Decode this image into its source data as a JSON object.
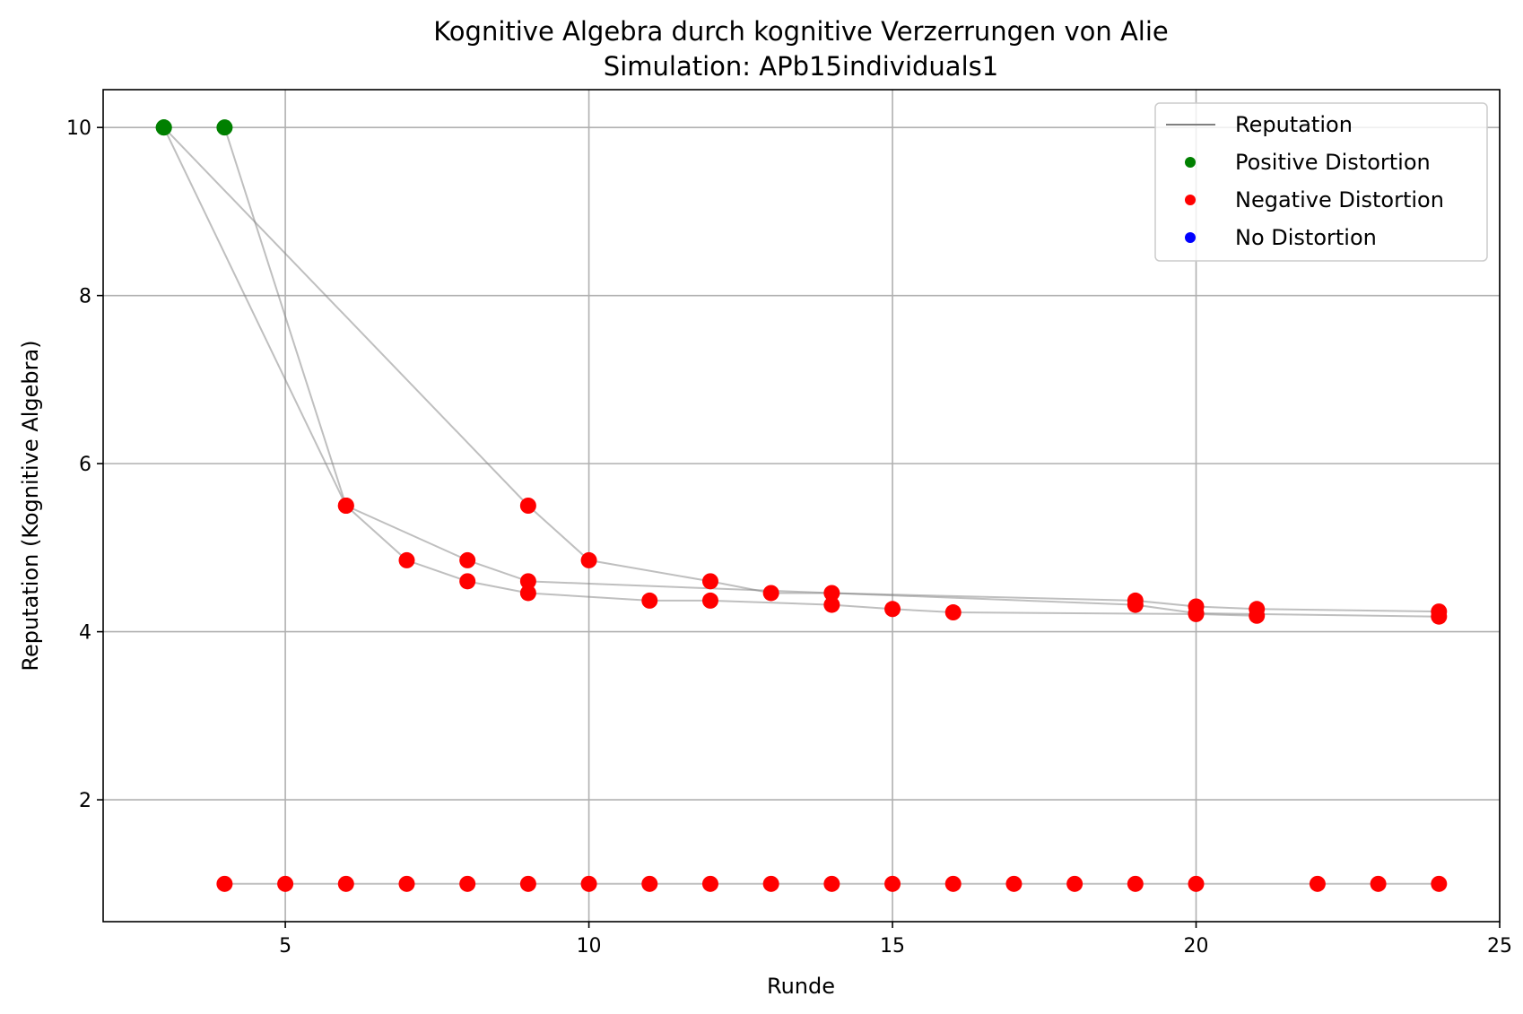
{
  "chart_data": {
    "type": "scatter",
    "title": "Kognitive Algebra durch kognitive Verzerrungen von Alie",
    "subtitle": "Simulation: APb15individuals1",
    "xlabel": "Runde",
    "ylabel": "Reputation (Kognitive Algebra)",
    "xlim": [
      2,
      25
    ],
    "ylim": [
      0.55,
      10.45
    ],
    "xticks": [
      5,
      10,
      15,
      20,
      25
    ],
    "yticks": [
      2,
      4,
      6,
      8,
      10
    ],
    "grid": true,
    "legend_position": "top-right",
    "legend": [
      {
        "label": "Reputation",
        "kind": "line",
        "color": "#808080"
      },
      {
        "label": "Positive Distortion",
        "kind": "marker",
        "color": "#008000"
      },
      {
        "label": "Negative Distortion",
        "kind": "marker",
        "color": "#ff0000"
      },
      {
        "label": "No Distortion",
        "kind": "marker",
        "color": "#0000ff"
      }
    ],
    "colors": {
      "positive": "#008000",
      "negative": "#ff0000",
      "none": "#0000ff",
      "line": "#808080"
    },
    "series": [
      {
        "points": [
          {
            "x": 3,
            "y": 10,
            "d": "positive"
          },
          {
            "x": 6,
            "y": 5.5,
            "d": "negative"
          },
          {
            "x": 8,
            "y": 4.85,
            "d": "negative"
          },
          {
            "x": 9,
            "y": 4.6,
            "d": "negative"
          },
          {
            "x": 19,
            "y": 4.32,
            "d": "negative"
          },
          {
            "x": 20,
            "y": 4.22,
            "d": "negative"
          },
          {
            "x": 24,
            "y": 4.18,
            "d": "negative"
          }
        ]
      },
      {
        "points": [
          {
            "x": 4,
            "y": 10,
            "d": "positive"
          },
          {
            "x": 6,
            "y": 5.5,
            "d": "negative"
          },
          {
            "x": 7,
            "y": 4.85,
            "d": "negative"
          },
          {
            "x": 8,
            "y": 4.6,
            "d": "negative"
          },
          {
            "x": 9,
            "y": 4.46,
            "d": "negative"
          },
          {
            "x": 11,
            "y": 4.37,
            "d": "negative"
          },
          {
            "x": 12,
            "y": 4.37,
            "d": "negative"
          },
          {
            "x": 14,
            "y": 4.32,
            "d": "negative"
          },
          {
            "x": 15,
            "y": 4.27,
            "d": "negative"
          },
          {
            "x": 16,
            "y": 4.23,
            "d": "negative"
          },
          {
            "x": 20,
            "y": 4.21,
            "d": "negative"
          },
          {
            "x": 21,
            "y": 4.19,
            "d": "negative"
          }
        ]
      },
      {
        "points": [
          {
            "x": 3,
            "y": 10,
            "d": "positive"
          },
          {
            "x": 9,
            "y": 5.5,
            "d": "negative"
          },
          {
            "x": 10,
            "y": 4.85,
            "d": "negative"
          },
          {
            "x": 12,
            "y": 4.6,
            "d": "negative"
          },
          {
            "x": 13,
            "y": 4.46,
            "d": "negative"
          },
          {
            "x": 14,
            "y": 4.46,
            "d": "negative"
          },
          {
            "x": 19,
            "y": 4.37,
            "d": "negative"
          },
          {
            "x": 20,
            "y": 4.3,
            "d": "negative"
          },
          {
            "x": 21,
            "y": 4.27,
            "d": "negative"
          },
          {
            "x": 24,
            "y": 4.24,
            "d": "negative"
          }
        ]
      },
      {
        "points": [
          {
            "x": 4,
            "y": 1,
            "d": "negative"
          },
          {
            "x": 5,
            "y": 1,
            "d": "negative"
          },
          {
            "x": 6,
            "y": 1,
            "d": "negative"
          },
          {
            "x": 7,
            "y": 1,
            "d": "negative"
          },
          {
            "x": 8,
            "y": 1,
            "d": "negative"
          },
          {
            "x": 9,
            "y": 1,
            "d": "negative"
          },
          {
            "x": 10,
            "y": 1,
            "d": "negative"
          },
          {
            "x": 11,
            "y": 1,
            "d": "negative"
          },
          {
            "x": 12,
            "y": 1,
            "d": "negative"
          },
          {
            "x": 13,
            "y": 1,
            "d": "negative"
          },
          {
            "x": 14,
            "y": 1,
            "d": "negative"
          },
          {
            "x": 15,
            "y": 1,
            "d": "negative"
          },
          {
            "x": 16,
            "y": 1,
            "d": "negative"
          },
          {
            "x": 17,
            "y": 1,
            "d": "negative"
          },
          {
            "x": 18,
            "y": 1,
            "d": "negative"
          },
          {
            "x": 19,
            "y": 1,
            "d": "negative"
          },
          {
            "x": 20,
            "y": 1,
            "d": "negative"
          },
          {
            "x": 22,
            "y": 1,
            "d": "negative"
          },
          {
            "x": 23,
            "y": 1,
            "d": "negative"
          },
          {
            "x": 24,
            "y": 1,
            "d": "negative"
          }
        ]
      }
    ]
  }
}
